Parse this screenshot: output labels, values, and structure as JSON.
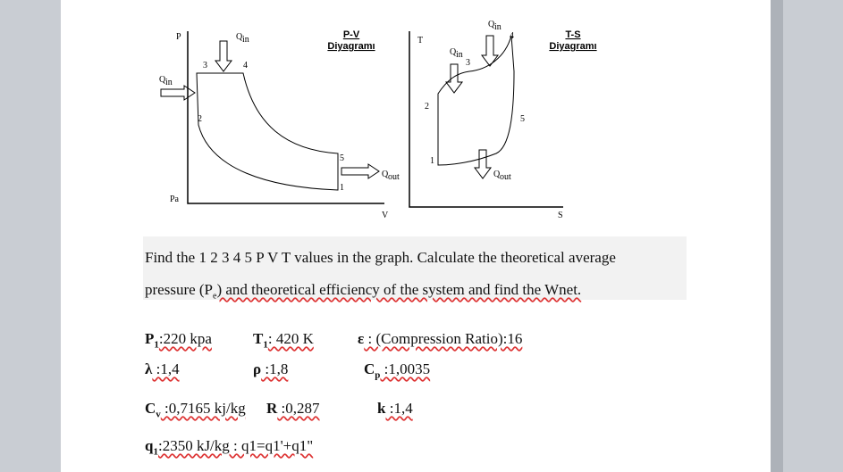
{
  "pv_diagram": {
    "title_line1": "P-V",
    "title_line2": "Diyagramı",
    "axis_y": "P",
    "axis_x": "V",
    "origin": "Pa",
    "heat_in_top": {
      "symbol": "Q",
      "subscript": "in"
    },
    "heat_in_left": {
      "symbol": "Q",
      "subscript": "in"
    },
    "heat_out": {
      "symbol": "Q",
      "subscript": "out"
    },
    "points": [
      "1",
      "2",
      "3",
      "4",
      "5"
    ]
  },
  "ts_diagram": {
    "title_line1": "T-S",
    "title_line2": "Diyagramı",
    "axis_y": "T",
    "axis_x": "S",
    "heat_in_top": {
      "symbol": "Q",
      "subscript": "in"
    },
    "heat_in_left": {
      "symbol": "Q",
      "subscript": "in"
    },
    "heat_out": {
      "symbol": "Q",
      "subscript": "out"
    },
    "points": [
      "1",
      "2",
      "3",
      "4",
      "5"
    ]
  },
  "problem": {
    "line1": "Find the 1 2 3 4 5 P V T values in the graph. Calculate the theoretical average",
    "line2_before": "pressure (P",
    "line2_subscript": "e",
    "line2_after": ") and theoretical efficiency of the system and find the Wnet."
  },
  "given": [
    {
      "symbol": "P",
      "subscript": "1",
      "value": ":220 kpa"
    },
    {
      "symbol": "T",
      "subscript": "1",
      "value": ": 420 K"
    },
    {
      "symbol": "ε",
      "value": " : (Compression Ratio):16"
    },
    {
      "symbol": "λ",
      "value": " :1,4"
    },
    {
      "symbol": "ρ",
      "value": " :1,8"
    },
    {
      "symbol": "C",
      "subscript": "p",
      "value": " :1,0035"
    },
    {
      "symbol": "C",
      "subscript": "v",
      "value": " :0,7165 kj/kg"
    },
    {
      "symbol": "R",
      "value": " :0,287"
    },
    {
      "symbol": "k",
      "value": " :1,4"
    },
    {
      "symbol": "q",
      "subscript": "1",
      "value": ":2350 kJ/kg : q1=q1'+q1\""
    }
  ]
}
